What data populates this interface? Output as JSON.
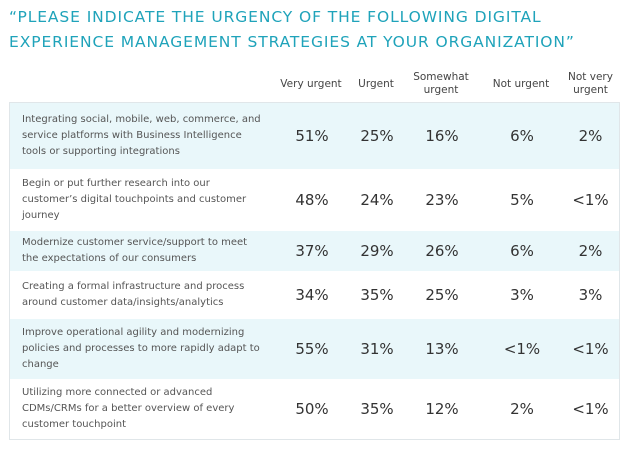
{
  "title": "“PLEASE INDICATE THE URGENCY OF THE FOLLOWING DIGITAL EXPERIENCE MANAGEMENT STRATEGIES AT YOUR ORGANIZATION”",
  "chart_data": {
    "type": "table",
    "title": "“PLEASE INDICATE THE URGENCY OF THE FOLLOWING DIGITAL EXPERIENCE MANAGEMENT STRATEGIES AT YOUR ORGANIZATION”",
    "columns": [
      "Very urgent",
      "Urgent",
      "Somewhat urgent",
      "Not urgent",
      "Not very urgent"
    ],
    "rows": [
      {
        "label": "Integrating social, mobile, web, commerce, and service platforms with Business Intelligence tools or supporting integrations",
        "values": [
          "51%",
          "25%",
          "16%",
          "6%",
          "2%"
        ]
      },
      {
        "label": "Begin or put further research into our customer’s digital touchpoints and customer journey",
        "values": [
          "48%",
          "24%",
          "23%",
          "5%",
          "<1%"
        ]
      },
      {
        "label": "Modernize customer service/support to meet the expectations of our consumers",
        "values": [
          "37%",
          "29%",
          "26%",
          "6%",
          "2%"
        ]
      },
      {
        "label": "Creating a formal infrastructure and process around customer data/insights/analytics",
        "values": [
          "34%",
          "35%",
          "25%",
          "3%",
          "3%"
        ]
      },
      {
        "label": "Improve operational agility and modernizing policies and processes to more rapidly adapt to change",
        "values": [
          "55%",
          "31%",
          "13%",
          "<1%",
          "<1%"
        ]
      },
      {
        "label": "Utilizing more connected or advanced CDMs/CRMs for a better overview of every customer touchpoint",
        "values": [
          "50%",
          "35%",
          "12%",
          "2%",
          "<1%"
        ]
      }
    ]
  }
}
